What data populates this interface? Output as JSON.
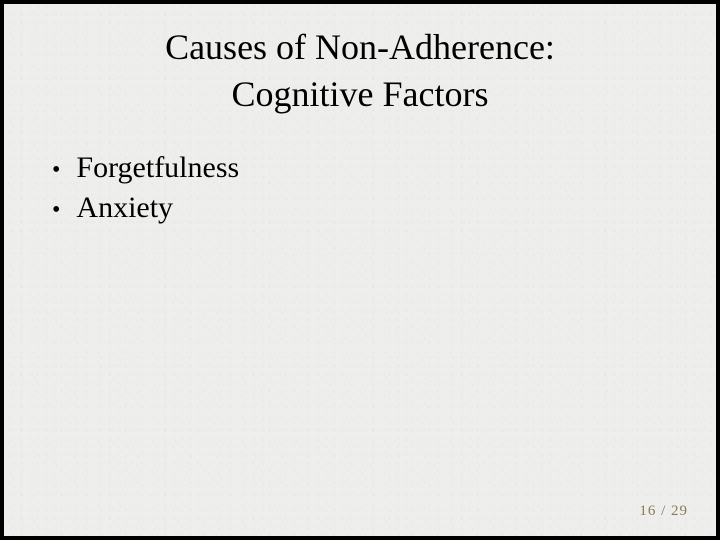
{
  "slide": {
    "title_line1": "Causes of Non-Adherence:",
    "title_line2": "Cognitive Factors",
    "bullets": [
      "Forgetfulness",
      "Anxiety"
    ],
    "page_current": "16",
    "page_separator": " / ",
    "page_total": "29"
  },
  "style": {
    "background_color": "#eeeeec",
    "border_color": "#000000",
    "border_width": 4,
    "title_fontsize": 36,
    "title_color": "#000000",
    "bullet_fontsize": 30,
    "bullet_color": "#000000",
    "pagenum_fontsize": 15,
    "pagenum_color": "#8a7a5a",
    "font_family": "Times New Roman"
  }
}
